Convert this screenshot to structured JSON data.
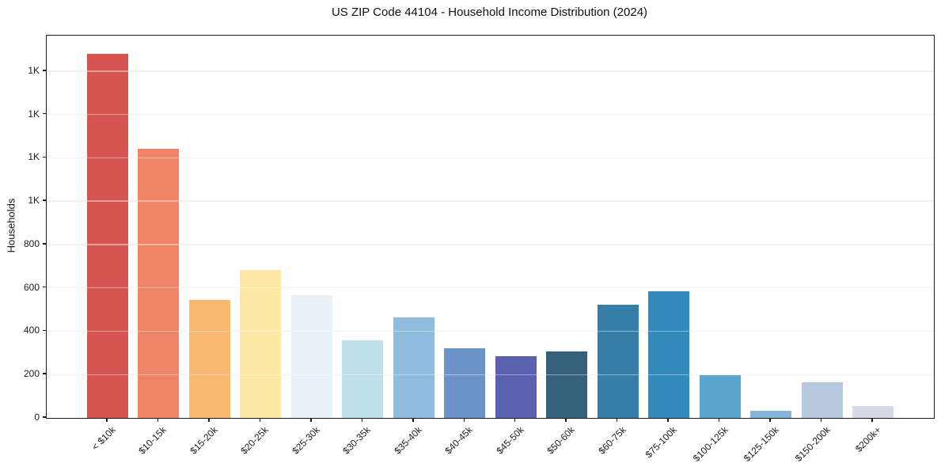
{
  "title": "US ZIP Code 44104 - Household Income Distribution (2024)",
  "chart_data": {
    "type": "bar",
    "title": "US ZIP Code 44104 - Household Income Distribution (2024)",
    "xlabel": "",
    "ylabel": "Households",
    "categories": [
      "< $10k",
      "$10-15k",
      "$15-20k",
      "$20-25k",
      "$25-30k",
      "$30-35k",
      "$35-40k",
      "$40-45k",
      "$45-50k",
      "$50-60k",
      "$60-75k",
      "$75-100k",
      "$100-125k",
      "$125-150k",
      "$150-200k",
      "$200k+"
    ],
    "values": [
      1680,
      1243,
      545,
      684,
      566,
      357,
      465,
      323,
      284,
      306,
      523,
      584,
      198,
      32,
      163,
      56
    ],
    "bar_colors": [
      "#d6544f",
      "#f08466",
      "#fab871",
      "#fde8a8",
      "#e7f2f8",
      "#c0dfec",
      "#8fbbdc",
      "#6b93c8",
      "#5a5fae",
      "#35617a",
      "#347ea7",
      "#338bbd",
      "#5ba6cc",
      "#86b4d8",
      "#b7c9de",
      "#d7d9e6"
    ],
    "ylim": [
      0,
      1764
    ],
    "yticks": [
      {
        "value": 0,
        "label": "0"
      },
      {
        "value": 200,
        "label": "200"
      },
      {
        "value": 400,
        "label": "400"
      },
      {
        "value": 600,
        "label": "600"
      },
      {
        "value": 800,
        "label": "800"
      },
      {
        "value": 1000,
        "label": "1K"
      },
      {
        "value": 1200,
        "label": "1K"
      },
      {
        "value": 1400,
        "label": "1K"
      },
      {
        "value": 1600,
        "label": "1K"
      }
    ],
    "grid": "horizontal",
    "legend_position": "none",
    "x_tick_rotation_deg": 45
  },
  "styles": {
    "spine_color": "#1c1c1c",
    "grid_color": "#e9e9e9",
    "text_color": "#1c1c1c",
    "background_color": "#ffffff"
  }
}
